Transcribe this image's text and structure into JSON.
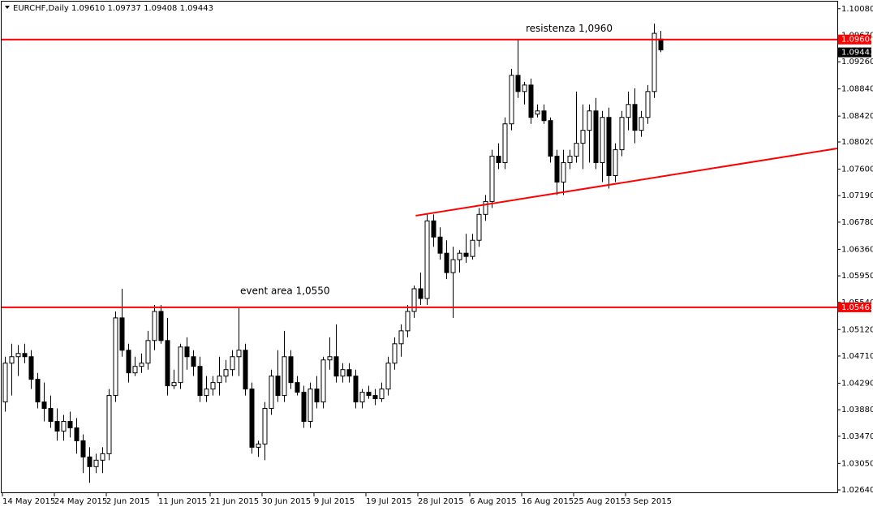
{
  "chart_data": {
    "type": "candlestick",
    "header": "EURCHF,Daily  1.09610 1.09737 1.09408 1.09443",
    "categories": [
      "14 May 2015",
      null,
      null,
      null,
      null,
      null,
      null,
      null,
      "24 May 2015",
      null,
      null,
      null,
      null,
      null,
      null,
      null,
      "2 Jun 2015",
      null,
      null,
      null,
      null,
      null,
      null,
      null,
      "11 Jun 2015",
      null,
      null,
      null,
      null,
      null,
      null,
      null,
      "21 Jun 2015",
      null,
      null,
      null,
      null,
      null,
      null,
      null,
      "30 Jun 2015",
      null,
      null,
      null,
      null,
      null,
      null,
      null,
      "9 Jul 2015",
      null,
      null,
      null,
      null,
      null,
      null,
      null,
      "19 Jul 2015",
      null,
      null,
      null,
      null,
      null,
      null,
      null,
      "28 Jul 2015",
      null,
      null,
      null,
      null,
      null,
      null,
      null,
      "6 Aug 2015",
      null,
      null,
      null,
      null,
      null,
      null,
      null,
      "16 Aug 2015",
      null,
      null,
      null,
      null,
      null,
      null,
      null,
      "25 Aug 2015",
      null,
      null,
      null,
      null,
      null,
      null,
      null,
      "3 Sep 2015",
      null,
      null,
      null,
      null,
      null
    ],
    "open": [
      1.04,
      1.046,
      1.047,
      1.0475,
      1.047,
      1.0435,
      1.04,
      1.039,
      1.037,
      1.0355,
      1.037,
      1.036,
      1.034,
      1.0315,
      1.03,
      1.031,
      1.032,
      1.041,
      1.053,
      1.048,
      1.0445,
      1.0455,
      1.046,
      1.0495,
      1.054,
      1.0495,
      1.0425,
      1.043,
      1.0485,
      1.047,
      1.0455,
      1.041,
      1.042,
      1.043,
      1.044,
      1.045,
      1.047,
      1.048,
      1.042,
      1.033,
      1.0335,
      1.039,
      1.044,
      1.041,
      1.047,
      1.043,
      1.0415,
      1.037,
      1.042,
      1.04,
      1.0465,
      1.047,
      1.044,
      1.045,
      1.044,
      1.04,
      1.0415,
      1.041,
      1.0405,
      1.042,
      1.046,
      1.049,
      1.051,
      1.054,
      1.0575,
      1.056,
      1.068,
      1.0655,
      1.063,
      1.06,
      1.062,
      1.063,
      1.0625,
      1.065,
      1.069,
      1.071,
      1.078,
      1.077,
      1.083,
      1.0905,
      1.088,
      1.089,
      1.0845,
      1.085,
      1.0835,
      1.078,
      1.074,
      1.077,
      1.078,
      1.08,
      1.082,
      1.085,
      1.077,
      1.084,
      1.075,
      1.079,
      1.084,
      1.086,
      1.082,
      1.084,
      1.088,
      1.0961
    ],
    "high": [
      1.047,
      1.049,
      1.0488,
      1.049,
      1.048,
      1.0445,
      1.043,
      1.041,
      1.039,
      1.038,
      1.0385,
      1.0375,
      1.035,
      1.033,
      1.032,
      1.033,
      1.042,
      1.054,
      1.0575,
      1.049,
      1.047,
      1.0475,
      1.051,
      1.055,
      1.055,
      1.053,
      1.045,
      1.049,
      1.05,
      1.048,
      1.047,
      1.044,
      1.044,
      1.047,
      1.0465,
      1.048,
      1.0545,
      1.049,
      1.043,
      1.034,
      1.04,
      1.045,
      1.048,
      1.051,
      1.048,
      1.044,
      1.0425,
      1.043,
      1.044,
      1.047,
      1.05,
      1.052,
      1.046,
      1.046,
      1.045,
      1.042,
      1.0425,
      1.042,
      1.043,
      1.047,
      1.05,
      1.052,
      1.055,
      1.058,
      1.06,
      1.069,
      1.069,
      1.067,
      1.065,
      1.064,
      1.0635,
      1.066,
      1.066,
      1.07,
      1.072,
      1.079,
      1.08,
      1.084,
      1.0915,
      1.096,
      1.0895,
      1.09,
      1.086,
      1.086,
      1.084,
      1.079,
      1.079,
      1.079,
      1.088,
      1.086,
      1.086,
      1.087,
      1.085,
      1.0855,
      1.08,
      1.085,
      1.088,
      1.0885,
      1.085,
      1.089,
      1.0985,
      1.09737
    ],
    "low": [
      1.0385,
      1.041,
      1.044,
      1.046,
      1.042,
      1.039,
      1.037,
      1.036,
      1.034,
      1.034,
      1.0345,
      1.032,
      1.029,
      1.0275,
      1.029,
      1.029,
      1.031,
      1.04,
      1.047,
      1.043,
      1.044,
      1.0445,
      1.045,
      1.048,
      1.049,
      1.041,
      1.042,
      1.042,
      1.045,
      1.044,
      1.04,
      1.04,
      1.041,
      1.041,
      1.043,
      1.044,
      1.044,
      1.041,
      1.032,
      1.0315,
      1.031,
      1.038,
      1.04,
      1.04,
      1.042,
      1.041,
      1.036,
      1.036,
      1.039,
      1.039,
      1.045,
      1.043,
      1.043,
      1.043,
      1.039,
      1.039,
      1.0405,
      1.0395,
      1.04,
      1.041,
      1.045,
      1.047,
      1.05,
      1.053,
      1.055,
      1.055,
      1.064,
      1.062,
      1.059,
      1.053,
      1.06,
      1.0615,
      1.062,
      1.064,
      1.068,
      1.07,
      1.076,
      1.076,
      1.082,
      1.087,
      1.086,
      1.083,
      1.084,
      1.083,
      1.077,
      1.072,
      1.072,
      1.076,
      1.077,
      1.076,
      1.077,
      1.076,
      1.074,
      1.073,
      1.074,
      1.078,
      1.082,
      1.08,
      1.081,
      1.083,
      1.087,
      1.09408
    ],
    "close": [
      1.046,
      1.047,
      1.0475,
      1.047,
      1.0435,
      1.04,
      1.039,
      1.037,
      1.0355,
      1.037,
      1.036,
      1.034,
      1.0315,
      1.03,
      1.031,
      1.032,
      1.041,
      1.053,
      1.048,
      1.0445,
      1.0455,
      1.046,
      1.0495,
      1.054,
      1.0495,
      1.0425,
      1.043,
      1.0485,
      1.047,
      1.0455,
      1.041,
      1.042,
      1.043,
      1.044,
      1.045,
      1.047,
      1.048,
      1.042,
      1.033,
      1.0335,
      1.039,
      1.044,
      1.041,
      1.047,
      1.043,
      1.0415,
      1.037,
      1.042,
      1.04,
      1.0465,
      1.047,
      1.044,
      1.045,
      1.044,
      1.04,
      1.0415,
      1.041,
      1.0405,
      1.042,
      1.046,
      1.049,
      1.051,
      1.054,
      1.0575,
      1.056,
      1.068,
      1.0655,
      1.063,
      1.06,
      1.062,
      1.063,
      1.0625,
      1.065,
      1.069,
      1.071,
      1.078,
      1.077,
      1.083,
      1.0905,
      1.088,
      1.089,
      1.084,
      1.085,
      1.0835,
      1.078,
      1.074,
      1.077,
      1.078,
      1.08,
      1.082,
      1.085,
      1.077,
      1.084,
      1.075,
      1.079,
      1.084,
      1.086,
      1.082,
      1.084,
      1.088,
      1.097,
      1.09443
    ],
    "ylim": [
      1.0259,
      1.1019
    ],
    "yticks": [
      {
        "value": 1.1008,
        "label": "1.10080"
      },
      {
        "value": 1.0967,
        "label": "1.09670"
      },
      {
        "value": 1.0926,
        "label": "1.09260"
      },
      {
        "value": 1.0884,
        "label": "1.08840"
      },
      {
        "value": 1.0842,
        "label": "1.08420"
      },
      {
        "value": 1.0802,
        "label": "1.08020"
      },
      {
        "value": 1.076,
        "label": "1.07600"
      },
      {
        "value": 1.0719,
        "label": "1.07190"
      },
      {
        "value": 1.0678,
        "label": "1.06780"
      },
      {
        "value": 1.0636,
        "label": "1.06360"
      },
      {
        "value": 1.0595,
        "label": "1.05950"
      },
      {
        "value": 1.0554,
        "label": "1.05540"
      },
      {
        "value": 1.0512,
        "label": "1.05120"
      },
      {
        "value": 1.0471,
        "label": "1.04710"
      },
      {
        "value": 1.0429,
        "label": "1.04290"
      },
      {
        "value": 1.0388,
        "label": "1.03880"
      },
      {
        "value": 1.0347,
        "label": "1.03470"
      },
      {
        "value": 1.0305,
        "label": "1.03050"
      },
      {
        "value": 1.0264,
        "label": "1.02640"
      }
    ],
    "levels": [
      {
        "value": 1.09604,
        "label": "1.09604",
        "annotation": "resistenza 1,0960",
        "color": "#ff0000"
      },
      {
        "value": 1.05463,
        "label": "1.05463",
        "annotation": "event area 1,0550",
        "color": "#ff0000"
      }
    ],
    "trendline": {
      "x": [
        63.3,
        128.6
      ],
      "y": [
        1.0688,
        1.0792
      ],
      "color": "#ff0000"
    },
    "grid": false
  }
}
